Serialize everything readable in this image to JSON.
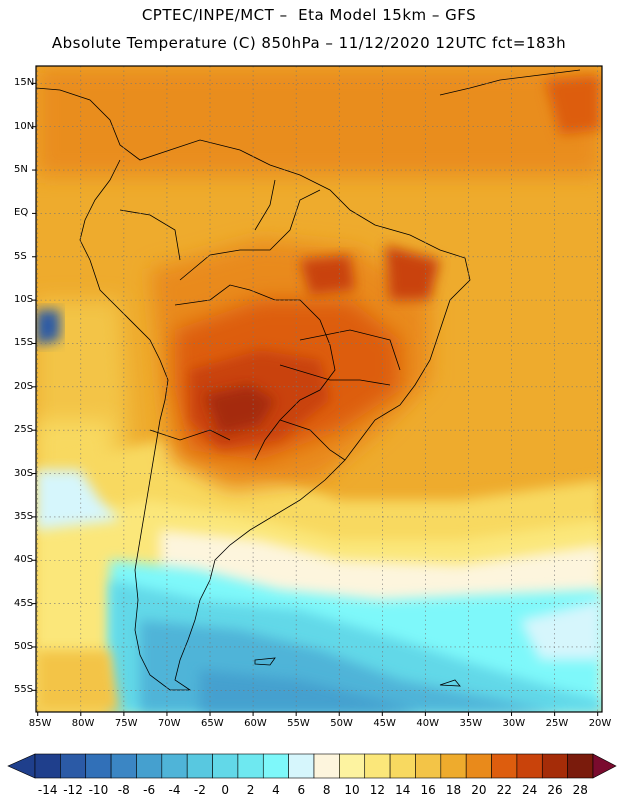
{
  "header": {
    "line1": "CPTEC/INPE/MCT –  Eta Model 15km – GFS",
    "line2": "Absolute Temperature (C) 850hPa – 11/12/2020 12UTC fct=183h"
  },
  "map": {
    "lat_labels": [
      "15N",
      "10N",
      "5N",
      "EQ",
      "5S",
      "10S",
      "15S",
      "20S",
      "25S",
      "30S",
      "35S",
      "40S",
      "45S",
      "50S",
      "55S"
    ],
    "lon_labels": [
      "85W",
      "80W",
      "75W",
      "70W",
      "65W",
      "60W",
      "55W",
      "50W",
      "45W",
      "40W",
      "35W",
      "30W",
      "25W",
      "20W"
    ],
    "lat_values": [
      15,
      10,
      5,
      0,
      -5,
      -10,
      -15,
      -20,
      -25,
      -30,
      -35,
      -40,
      -45,
      -50,
      -55
    ],
    "lon_values": [
      -85,
      -80,
      -75,
      -70,
      -65,
      -60,
      -55,
      -50,
      -45,
      -40,
      -35,
      -30,
      -25,
      -20
    ],
    "extent": {
      "lon_min": -85.2,
      "lon_max": -19.5,
      "lat_min": -57.5,
      "lat_max": 17
    }
  },
  "colorbar": {
    "labels": [
      "-14",
      "-12",
      "-10",
      "-8",
      "-6",
      "-4",
      "-2",
      "0",
      "2",
      "4",
      "6",
      "8",
      "10",
      "12",
      "14",
      "16",
      "18",
      "20",
      "22",
      "24",
      "26",
      "28"
    ],
    "colors": [
      "#1f3f8c",
      "#2b5aa6",
      "#3170b8",
      "#3b86c4",
      "#45a0cf",
      "#4fb4d8",
      "#58c8e0",
      "#62d8e8",
      "#6ee8f0",
      "#7ef8fa",
      "#d6f6fc",
      "#fdf5dd",
      "#fdf3a0",
      "#fbe77a",
      "#f8d960",
      "#f3c447",
      "#eeab2d",
      "#e98a1b",
      "#dd5d0e",
      "#c9430b",
      "#a52c08",
      "#7a1b0c"
    ],
    "low_color": "#1f3f8c",
    "high_color": "#7a0b2e"
  }
}
